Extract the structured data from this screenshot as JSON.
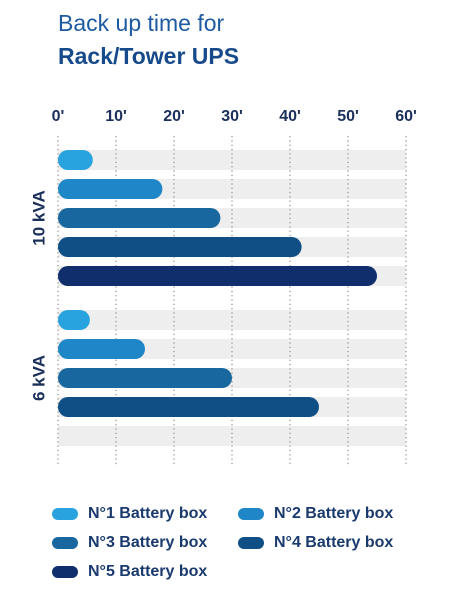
{
  "chart_data": {
    "type": "bar",
    "orientation": "horizontal",
    "title": [
      "Back up time for",
      "Rack/Tower UPS"
    ],
    "categories": [
      "10 kVA",
      "6 kVA"
    ],
    "series": [
      {
        "name": "N°1 Battery box",
        "color": "#29a3e0",
        "values": [
          6,
          5.5
        ]
      },
      {
        "name": "N°2 Battery box",
        "color": "#1f86c8",
        "values": [
          18,
          15
        ]
      },
      {
        "name": "N°3 Battery box",
        "color": "#18679f",
        "values": [
          28,
          30
        ]
      },
      {
        "name": "N°4 Battery box",
        "color": "#0f4f85",
        "values": [
          42,
          45
        ]
      },
      {
        "name": "N°5 Battery box",
        "color": "#102d6c",
        "values": [
          55,
          null
        ]
      }
    ],
    "xlim": [
      0,
      60
    ],
    "xticks": [
      {
        "value": 0,
        "label": "0'"
      },
      {
        "value": 10,
        "label": "10'"
      },
      {
        "value": 20,
        "label": "20'"
      },
      {
        "value": 30,
        "label": "30'"
      },
      {
        "value": 40,
        "label": "40'"
      },
      {
        "value": 50,
        "label": "50'"
      },
      {
        "value": 60,
        "label": "60'"
      }
    ],
    "grid": true
  }
}
